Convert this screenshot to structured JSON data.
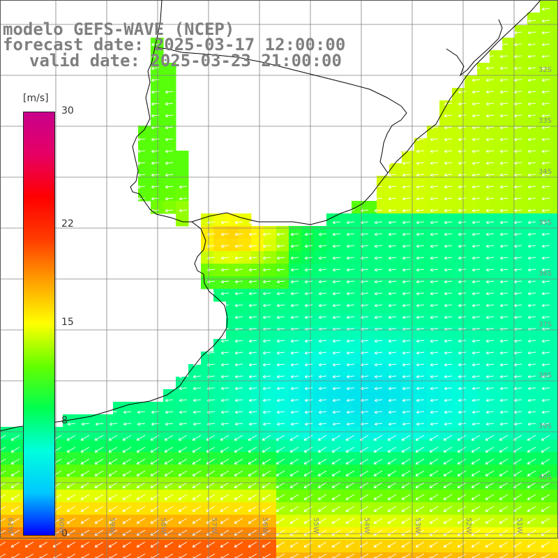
{
  "title": {
    "line1": "modelo GEFS-WAVE (NCEP)",
    "line2": "forecast date: 2025-03-17 12:00:00",
    "line3": "valid date: 2025-03-23 21:00:00"
  },
  "colorbar": {
    "unit": "[m/s]",
    "ticks": [
      {
        "value": 30,
        "label": "30"
      },
      {
        "value": 22,
        "label": "22"
      },
      {
        "value": 15,
        "label": "15"
      },
      {
        "value": 8,
        "label": "8"
      },
      {
        "value": 0,
        "label": "0"
      }
    ],
    "min": 0,
    "max": 30,
    "gradient": [
      "#0000ff",
      "#00c8ff",
      "#00ffdc",
      "#00ff50",
      "#64ff00",
      "#ffff00",
      "#ffa000",
      "#ff3c00",
      "#ff0000",
      "#e60064",
      "#c8008c"
    ]
  },
  "lat_labels": [
    "32S",
    "33S",
    "34S",
    "35S",
    "36S",
    "37S",
    "38S",
    "39S",
    "40S"
  ],
  "lon_labels": [
    "61W",
    "60W",
    "59W",
    "58W",
    "57W",
    "56W",
    "55W",
    "54W",
    "53W",
    "52W",
    "51W"
  ],
  "colors": {
    "land": "#ffffff",
    "coast": "#000000",
    "grid": "#808080",
    "arrows": "#ffffff",
    "title": "#7f7f7f"
  }
}
